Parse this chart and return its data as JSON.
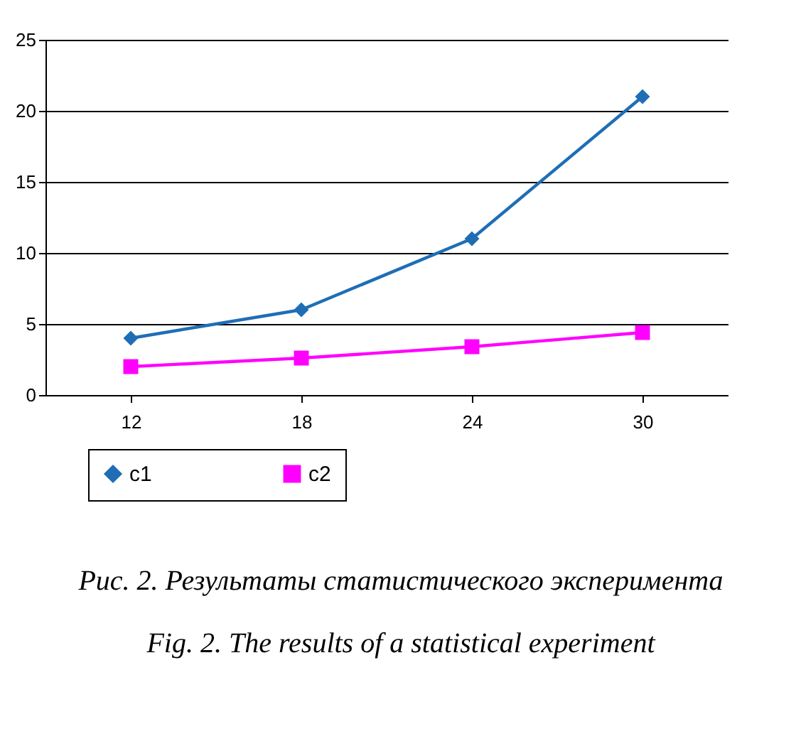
{
  "chart_data": {
    "type": "line",
    "categories": [
      "12",
      "18",
      "24",
      "30"
    ],
    "series": [
      {
        "name": "c1",
        "color": "#1f6eb5",
        "marker": "diamond",
        "values": [
          4,
          6,
          11,
          21
        ]
      },
      {
        "name": "c2",
        "color": "#ff00ff",
        "marker": "square",
        "values": [
          2,
          2.6,
          3.4,
          4.4
        ]
      }
    ],
    "ylim": [
      0,
      25
    ],
    "yticks": [
      0,
      5,
      10,
      15,
      20,
      25
    ],
    "grid": "y",
    "legend": "bottom",
    "annotations": [
      "Рис. 2. Результаты статистического эксперимента",
      "Fig. 2. The results of a statistical experiment"
    ]
  }
}
